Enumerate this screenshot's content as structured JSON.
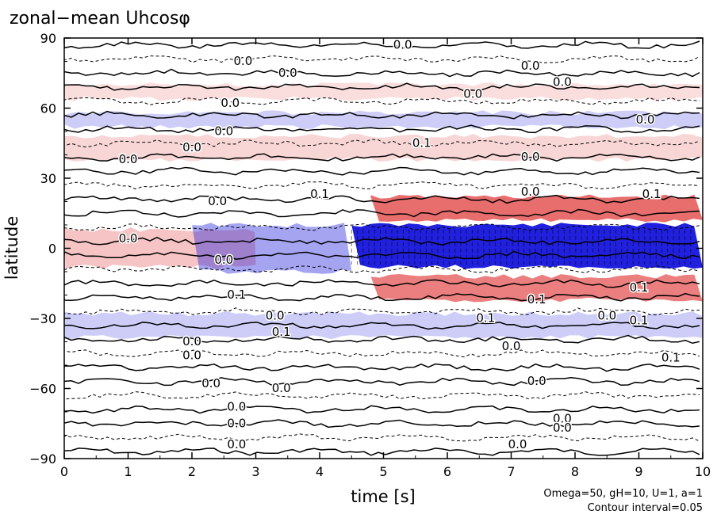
{
  "chart_data": {
    "type": "heatmap",
    "title": "zonal−mean Uhcosφ",
    "xlabel": "time [s]",
    "ylabel": "latitude",
    "xlim": [
      0,
      10
    ],
    "ylim": [
      -90,
      90
    ],
    "x_ticks": [
      0,
      1,
      2,
      3,
      4,
      5,
      6,
      7,
      8,
      9,
      10
    ],
    "y_ticks": [
      {
        "value": 90,
        "label": "90"
      },
      {
        "value": 60,
        "label": "60"
      },
      {
        "value": 30,
        "label": "30"
      },
      {
        "value": 0,
        "label": "0"
      },
      {
        "value": -30,
        "label": "−30"
      },
      {
        "value": -60,
        "label": "−60"
      },
      {
        "value": -90,
        "label": "−90"
      }
    ],
    "notes": [
      "Omega=50, gH=10, U=1, a=1",
      "Contour interval=0.05"
    ],
    "colors": {
      "positive": "#e03c3c",
      "negative": "#1414dc",
      "contour": "#000000"
    },
    "bands": [
      {
        "t_start": 4.5,
        "t_end": 10,
        "lat_min": -8,
        "lat_max": 10,
        "value": -0.55
      },
      {
        "t_start": 4.8,
        "t_end": 10,
        "lat_min": 12,
        "lat_max": 22,
        "value": 0.35
      },
      {
        "t_start": 4.8,
        "t_end": 10,
        "lat_min": -22,
        "lat_max": -12,
        "value": 0.3
      },
      {
        "t_start": 0,
        "t_end": 3,
        "lat_min": -8,
        "lat_max": 8,
        "value": 0.1
      },
      {
        "t_start": 2,
        "t_end": 4.5,
        "lat_min": -10,
        "lat_max": 10,
        "value": -0.15
      },
      {
        "t_start": 0,
        "t_end": 10,
        "lat_min": -38,
        "lat_max": -28,
        "value": -0.05
      },
      {
        "t_start": 0,
        "t_end": 10,
        "lat_min": 38,
        "lat_max": 48,
        "value": 0.05
      },
      {
        "t_start": 0,
        "t_end": 10,
        "lat_min": 52,
        "lat_max": 58,
        "value": -0.05
      },
      {
        "t_start": 0,
        "t_end": 10,
        "lat_min": 64,
        "lat_max": 70,
        "value": 0.03
      }
    ],
    "contour_labels": [
      {
        "t": 5.3,
        "lat": 87,
        "text": "0.0"
      },
      {
        "t": 2.8,
        "lat": 80,
        "text": "0.0"
      },
      {
        "t": 7.3,
        "lat": 78,
        "text": "0.0"
      },
      {
        "t": 3.5,
        "lat": 75,
        "text": "0.0"
      },
      {
        "t": 7.8,
        "lat": 71,
        "text": "0.0"
      },
      {
        "t": 6.4,
        "lat": 66,
        "text": "0.0"
      },
      {
        "t": 2.6,
        "lat": 62,
        "text": "0.0"
      },
      {
        "t": 9.1,
        "lat": 55,
        "text": "0.0"
      },
      {
        "t": 2.5,
        "lat": 50,
        "text": "0.0"
      },
      {
        "t": 5.6,
        "lat": 45,
        "text": "0.1"
      },
      {
        "t": 2.0,
        "lat": 43,
        "text": "0.0"
      },
      {
        "t": 1.0,
        "lat": 38,
        "text": "0.0"
      },
      {
        "t": 7.3,
        "lat": 39,
        "text": "0.0"
      },
      {
        "t": 4.0,
        "lat": 23,
        "text": "0.1"
      },
      {
        "t": 7.3,
        "lat": 24,
        "text": "0.0"
      },
      {
        "t": 9.2,
        "lat": 23,
        "text": "0.1"
      },
      {
        "t": 2.4,
        "lat": 20,
        "text": "0.0"
      },
      {
        "t": 1.0,
        "lat": 4,
        "text": "0.0"
      },
      {
        "t": 2.5,
        "lat": -5,
        "text": "0.0"
      },
      {
        "t": 2.7,
        "lat": -20,
        "text": "0.1"
      },
      {
        "t": 7.4,
        "lat": -22,
        "text": "0.1"
      },
      {
        "t": 9.0,
        "lat": -17,
        "text": "0.1"
      },
      {
        "t": 3.3,
        "lat": -29,
        "text": "0.0"
      },
      {
        "t": 6.6,
        "lat": -30,
        "text": "0.1"
      },
      {
        "t": 8.5,
        "lat": -29,
        "text": "0.0"
      },
      {
        "t": 9.0,
        "lat": -31,
        "text": "0.1"
      },
      {
        "t": 3.4,
        "lat": -36,
        "text": "0.1"
      },
      {
        "t": 2.0,
        "lat": -40,
        "text": "0.0"
      },
      {
        "t": 7.0,
        "lat": -42,
        "text": "0.0"
      },
      {
        "t": 2.0,
        "lat": -46,
        "text": "0.0"
      },
      {
        "t": 9.5,
        "lat": -47,
        "text": "0.1"
      },
      {
        "t": 7.4,
        "lat": -57,
        "text": "0.0"
      },
      {
        "t": 2.3,
        "lat": -58,
        "text": "0.0"
      },
      {
        "t": 3.4,
        "lat": -60,
        "text": "0.0"
      },
      {
        "t": 2.7,
        "lat": -68,
        "text": "0.0"
      },
      {
        "t": 7.8,
        "lat": -73,
        "text": "0.0"
      },
      {
        "t": 2.7,
        "lat": -75,
        "text": "0.0"
      },
      {
        "t": 7.8,
        "lat": -77,
        "text": "0.0"
      },
      {
        "t": 2.7,
        "lat": -84,
        "text": "0.0"
      },
      {
        "t": 7.1,
        "lat": -84,
        "text": "0.0"
      }
    ]
  }
}
